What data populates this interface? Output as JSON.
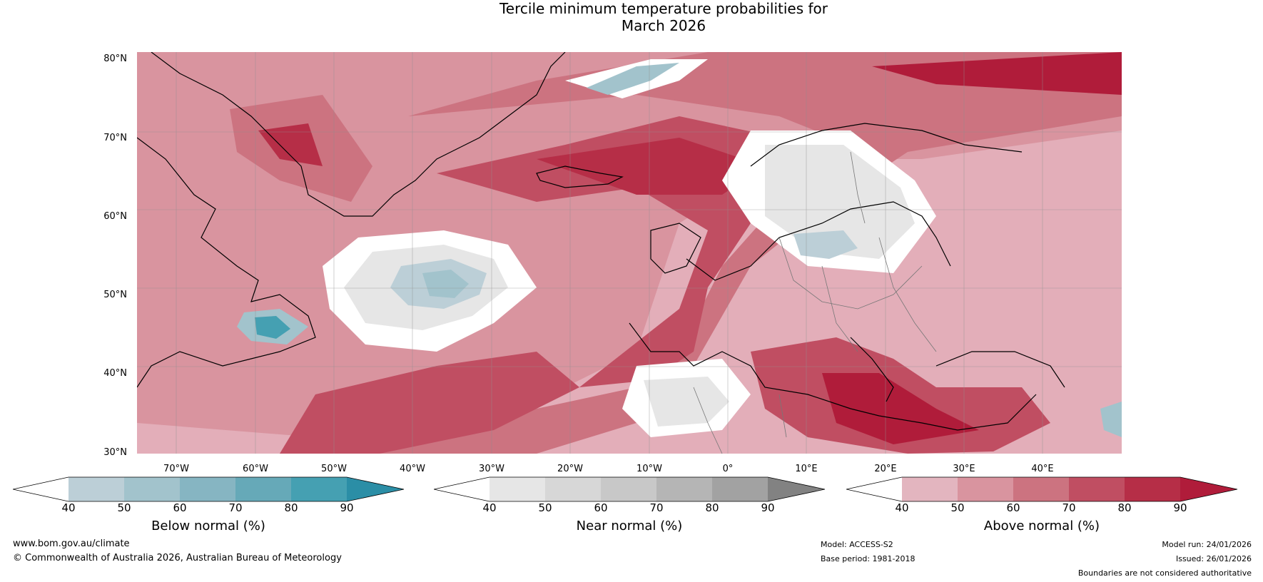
{
  "title": {
    "line1": "Tercile minimum temperature probabilities for",
    "line2": "March 2026"
  },
  "map": {
    "lat_labels": [
      "80°N",
      "70°N",
      "60°N",
      "50°N",
      "40°N",
      "30°N"
    ],
    "lon_labels": [
      "70°W",
      "60°W",
      "50°W",
      "40°W",
      "30°W",
      "20°W",
      "10°W",
      "0°",
      "10°E",
      "20°E",
      "30°E",
      "40°E"
    ]
  },
  "colorbars": [
    {
      "label": "Below normal (%)",
      "ticks": [
        "40",
        "50",
        "60",
        "70",
        "80",
        "90"
      ],
      "colors": [
        "#ffffff",
        "#bccfd7",
        "#a2c3cc",
        "#86b5c2",
        "#66a9b8",
        "#45a0b2",
        "#2b8ea6"
      ]
    },
    {
      "label": "Near normal (%)",
      "ticks": [
        "40",
        "50",
        "60",
        "70",
        "80",
        "90"
      ],
      "colors": [
        "#ffffff",
        "#e6e6e6",
        "#d7d7d7",
        "#c8c8c8",
        "#b5b5b5",
        "#a2a2a2",
        "#828282"
      ]
    },
    {
      "label": "Above normal (%)",
      "ticks": [
        "40",
        "50",
        "60",
        "70",
        "80",
        "90"
      ],
      "colors": [
        "#ffffff",
        "#e3b5bf",
        "#d9949f",
        "#cc7380",
        "#c04e62",
        "#b62e47",
        "#b01c3a"
      ]
    }
  ],
  "footer": {
    "left_line1": "www.bom.gov.au/climate",
    "left_line2": "© Commonwealth of Australia 2026, Australian Bureau of Meteorology",
    "model": "Model: ACCESS-S2",
    "base_period": "Base period: 1981-2018",
    "model_run": "Model run: 24/01/2026",
    "issued": "Issued: 26/01/2026",
    "disclaimer": "Boundaries are not considered authoritative"
  }
}
